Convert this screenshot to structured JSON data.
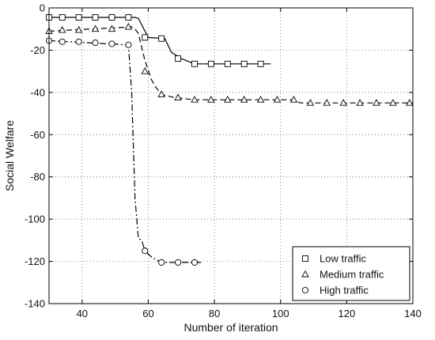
{
  "chart_data": {
    "type": "line",
    "xlabel": "Number of iteration",
    "ylabel": "Social Welfare",
    "xlim": [
      30,
      140
    ],
    "ylim": [
      -140,
      0
    ],
    "xticks": [
      40,
      60,
      80,
      100,
      120,
      140
    ],
    "yticks": [
      0,
      -20,
      -40,
      -60,
      -80,
      -100,
      -120,
      -140
    ],
    "grid": true,
    "legend_position": "bottom-right",
    "series": [
      {
        "name": "Low traffic",
        "marker": "square",
        "linestyle": "solid",
        "points": [
          [
            30,
            -4.5
          ],
          [
            56,
            -4.5
          ],
          [
            57,
            -5
          ],
          [
            60,
            -14
          ],
          [
            65,
            -14.5
          ],
          [
            67,
            -21
          ],
          [
            70,
            -24
          ],
          [
            74,
            -26.5
          ],
          [
            80,
            -26.5
          ],
          [
            97,
            -26.5
          ]
        ],
        "markers": [
          [
            30,
            -4.5
          ],
          [
            34,
            -4.5
          ],
          [
            39,
            -4.5
          ],
          [
            44,
            -4.5
          ],
          [
            49,
            -4.5
          ],
          [
            54,
            -4.5
          ],
          [
            59,
            -14
          ],
          [
            64,
            -14.5
          ],
          [
            69,
            -24
          ],
          [
            74,
            -26.5
          ],
          [
            79,
            -26.5
          ],
          [
            84,
            -26.5
          ],
          [
            89,
            -26.5
          ],
          [
            94,
            -26.5
          ]
        ]
      },
      {
        "name": "Medium traffic",
        "marker": "triangle",
        "linestyle": "dashed",
        "points": [
          [
            30,
            -11
          ],
          [
            55,
            -9
          ],
          [
            56,
            -10
          ],
          [
            57,
            -12
          ],
          [
            59,
            -25
          ],
          [
            61,
            -34
          ],
          [
            62,
            -37
          ],
          [
            64,
            -41
          ],
          [
            68,
            -42.5
          ],
          [
            74,
            -43.5
          ],
          [
            104,
            -43.5
          ],
          [
            106,
            -45
          ],
          [
            140,
            -45
          ]
        ],
        "markers": [
          [
            30,
            -11
          ],
          [
            34,
            -10.5
          ],
          [
            39,
            -10.5
          ],
          [
            44,
            -10
          ],
          [
            49,
            -10
          ],
          [
            54,
            -9
          ],
          [
            59,
            -30
          ],
          [
            64,
            -41
          ],
          [
            69,
            -42.5
          ],
          [
            74,
            -43.5
          ],
          [
            79,
            -43.5
          ],
          [
            84,
            -43.5
          ],
          [
            89,
            -43.5
          ],
          [
            94,
            -43.5
          ],
          [
            99,
            -43.5
          ],
          [
            104,
            -43.5
          ],
          [
            109,
            -45
          ],
          [
            114,
            -45
          ],
          [
            119,
            -45
          ],
          [
            124,
            -45
          ],
          [
            129,
            -45
          ],
          [
            134,
            -45
          ],
          [
            139,
            -45
          ]
        ]
      },
      {
        "name": "High traffic",
        "marker": "circle",
        "linestyle": "dashdot",
        "points": [
          [
            30,
            -15.5
          ],
          [
            54,
            -17.5
          ],
          [
            55,
            -40
          ],
          [
            56,
            -90
          ],
          [
            57,
            -109
          ],
          [
            58,
            -110
          ],
          [
            59,
            -115
          ],
          [
            61,
            -118
          ],
          [
            64,
            -120.5
          ],
          [
            68,
            -120.5
          ],
          [
            76,
            -120.5
          ]
        ],
        "markers": [
          [
            30,
            -15.5
          ],
          [
            34,
            -16
          ],
          [
            39,
            -16
          ],
          [
            44,
            -16.5
          ],
          [
            49,
            -17
          ],
          [
            54,
            -17.5
          ],
          [
            59,
            -115
          ],
          [
            64,
            -120.5
          ],
          [
            69,
            -120.5
          ],
          [
            74,
            -120.5
          ]
        ]
      }
    ]
  }
}
